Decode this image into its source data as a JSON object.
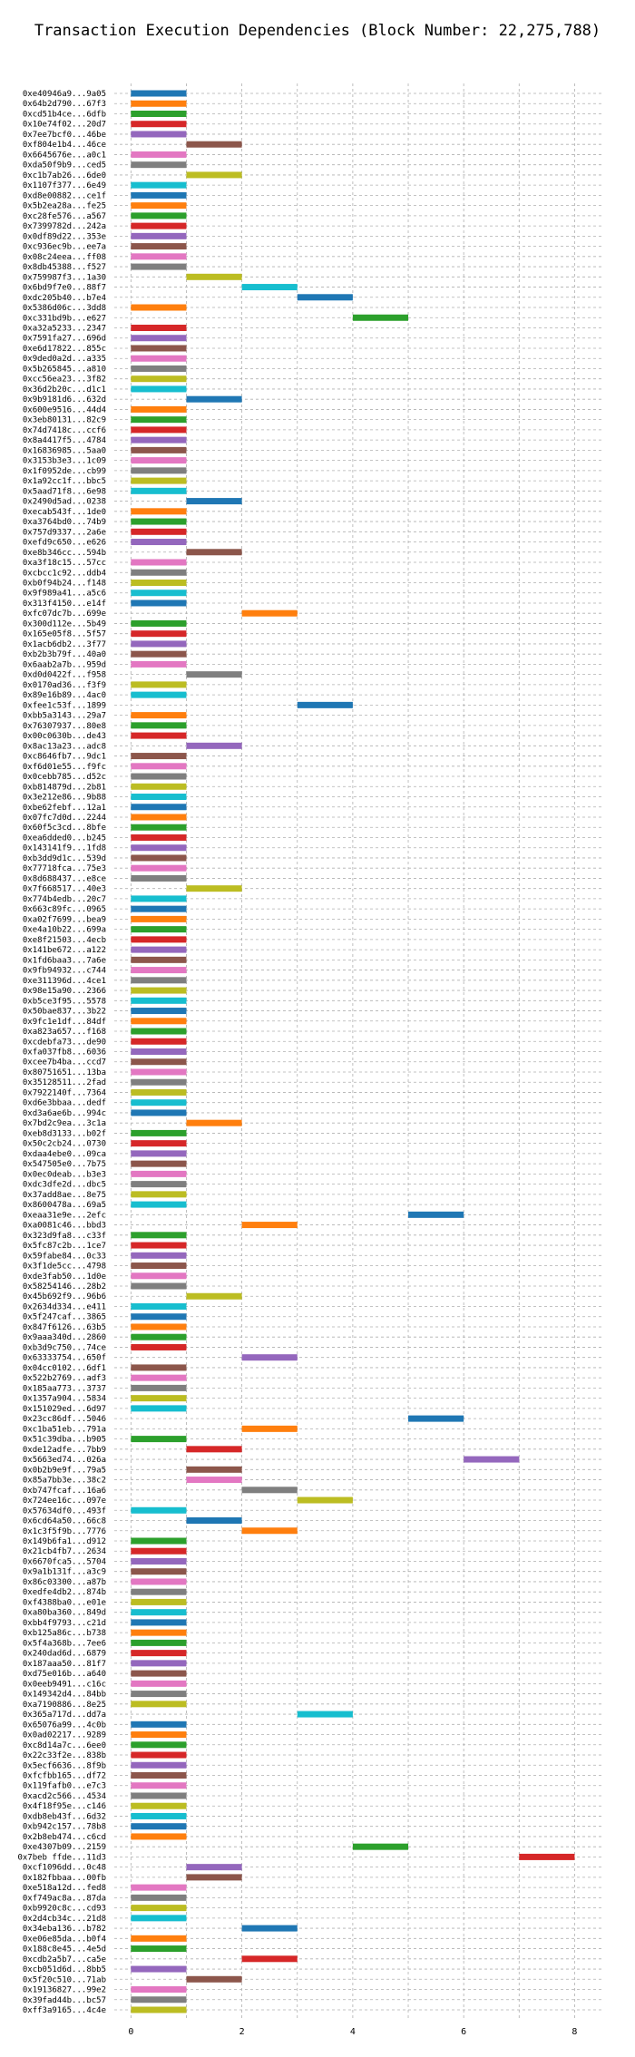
{
  "chart_data": {
    "type": "bar",
    "orientation": "horizontal-gantt",
    "title": "Transaction Execution Dependencies (Block Number: 22,275,788)",
    "xlabel": "",
    "ylabel": "",
    "xlim": [
      -0.3,
      8.5
    ],
    "xticks": [
      0,
      2,
      4,
      6,
      8
    ],
    "grid": true,
    "palette": [
      "#1f77b4",
      "#ff7f0e",
      "#2ca02c",
      "#d62728",
      "#9467bd",
      "#8c564b",
      "#e377c2",
      "#7f7f7f",
      "#bcbd22",
      "#17becf"
    ],
    "series": [
      {
        "label": "0xe40946a9...9a05",
        "start": 0,
        "end": 1
      },
      {
        "label": "0x64b2d790...67f3",
        "start": 0,
        "end": 1
      },
      {
        "label": "0xcd51b4ce...6dfb",
        "start": 0,
        "end": 1
      },
      {
        "label": "0x10e74f02...20d7",
        "start": 0,
        "end": 1
      },
      {
        "label": "0x7ee7bcf0...46be",
        "start": 0,
        "end": 1
      },
      {
        "label": "0xf804e1b4...46ce",
        "start": 1,
        "end": 2
      },
      {
        "label": "0x6645676e...a0c1",
        "start": 0,
        "end": 1
      },
      {
        "label": "0xda50f9b9...ced5",
        "start": 0,
        "end": 1
      },
      {
        "label": "0xc1b7ab26...6de0",
        "start": 1,
        "end": 2
      },
      {
        "label": "0x1107f377...6e49",
        "start": 0,
        "end": 1
      },
      {
        "label": "0xd8e00882...ce1f",
        "start": 0,
        "end": 1
      },
      {
        "label": "0x5b2ea28a...fe25",
        "start": 0,
        "end": 1
      },
      {
        "label": "0xc28fe576...a567",
        "start": 0,
        "end": 1
      },
      {
        "label": "0x7399782d...242a",
        "start": 0,
        "end": 1
      },
      {
        "label": "0x0df89d22...353e",
        "start": 0,
        "end": 1
      },
      {
        "label": "0xc936ec9b...ee7a",
        "start": 0,
        "end": 1
      },
      {
        "label": "0x08c24eea...ff08",
        "start": 0,
        "end": 1
      },
      {
        "label": "0x8db45388...f527",
        "start": 0,
        "end": 1
      },
      {
        "label": "0x759987f3...1a30",
        "start": 1,
        "end": 2
      },
      {
        "label": "0x6bd9f7e0...88f7",
        "start": 2,
        "end": 3
      },
      {
        "label": "0xdc205b40...b7e4",
        "start": 3,
        "end": 4
      },
      {
        "label": "0x5386d06c...3dd8",
        "start": 0,
        "end": 1
      },
      {
        "label": "0xc331bd9b...e627",
        "start": 4,
        "end": 5
      },
      {
        "label": "0xa32a5233...2347",
        "start": 0,
        "end": 1
      },
      {
        "label": "0x7591fa27...696d",
        "start": 0,
        "end": 1
      },
      {
        "label": "0xe6d17822...855c",
        "start": 0,
        "end": 1
      },
      {
        "label": "0x9ded0a2d...a335",
        "start": 0,
        "end": 1
      },
      {
        "label": "0x5b265845...a810",
        "start": 0,
        "end": 1
      },
      {
        "label": "0xcc56ea23...3f82",
        "start": 0,
        "end": 1
      },
      {
        "label": "0x36d2b20c...d1c1",
        "start": 0,
        "end": 1
      },
      {
        "label": "0x9b9181d6...632d",
        "start": 1,
        "end": 2
      },
      {
        "label": "0x600e9516...44d4",
        "start": 0,
        "end": 1
      },
      {
        "label": "0x3eb80131...82c9",
        "start": 0,
        "end": 1
      },
      {
        "label": "0x74d7418c...ccf6",
        "start": 0,
        "end": 1
      },
      {
        "label": "0x8a4417f5...4784",
        "start": 0,
        "end": 1
      },
      {
        "label": "0x16836985...5aa0",
        "start": 0,
        "end": 1
      },
      {
        "label": "0x3153b3e3...1c09",
        "start": 0,
        "end": 1
      },
      {
        "label": "0x1f0952de...cb99",
        "start": 0,
        "end": 1
      },
      {
        "label": "0x1a92cc1f...bbc5",
        "start": 0,
        "end": 1
      },
      {
        "label": "0x5aad71f8...6e98",
        "start": 0,
        "end": 1
      },
      {
        "label": "0x2490d5ad...0238",
        "start": 1,
        "end": 2
      },
      {
        "label": "0xecab543f...1de0",
        "start": 0,
        "end": 1
      },
      {
        "label": "0xa3764bd0...74b9",
        "start": 0,
        "end": 1
      },
      {
        "label": "0x757d9337...2a6e",
        "start": 0,
        "end": 1
      },
      {
        "label": "0xefd9c650...e626",
        "start": 0,
        "end": 1
      },
      {
        "label": "0xe8b346cc...594b",
        "start": 1,
        "end": 2
      },
      {
        "label": "0xa3f18c15...57cc",
        "start": 0,
        "end": 1
      },
      {
        "label": "0xcbcc1c92...ddb4",
        "start": 0,
        "end": 1
      },
      {
        "label": "0xb0f94b24...f148",
        "start": 0,
        "end": 1
      },
      {
        "label": "0x9f989a41...a5c6",
        "start": 0,
        "end": 1
      },
      {
        "label": "0x313f4150...e14f",
        "start": 0,
        "end": 1
      },
      {
        "label": "0xfc07dc7b...699e",
        "start": 2,
        "end": 3
      },
      {
        "label": "0x300d112e...5b49",
        "start": 0,
        "end": 1
      },
      {
        "label": "0x165e05f8...5f57",
        "start": 0,
        "end": 1
      },
      {
        "label": "0x1acb6db2...3f77",
        "start": 0,
        "end": 1
      },
      {
        "label": "0xb2b3b79f...40a0",
        "start": 0,
        "end": 1
      },
      {
        "label": "0x6aab2a7b...959d",
        "start": 0,
        "end": 1
      },
      {
        "label": "0xd0d0422f...f958",
        "start": 1,
        "end": 2
      },
      {
        "label": "0x0170ad36...f3f9",
        "start": 0,
        "end": 1
      },
      {
        "label": "0x89e16b89...4ac0",
        "start": 0,
        "end": 1
      },
      {
        "label": "0xfee1c53f...1899",
        "start": 3,
        "end": 4
      },
      {
        "label": "0xbb5a3143...29a7",
        "start": 0,
        "end": 1
      },
      {
        "label": "0x76307937...80e8",
        "start": 0,
        "end": 1
      },
      {
        "label": "0x00c0630b...de43",
        "start": 0,
        "end": 1
      },
      {
        "label": "0x8ac13a23...adc8",
        "start": 1,
        "end": 2
      },
      {
        "label": "0xc8646fb7...9dc1",
        "start": 0,
        "end": 1
      },
      {
        "label": "0xf6d01e55...f9fc",
        "start": 0,
        "end": 1
      },
      {
        "label": "0x0cebb785...d52c",
        "start": 0,
        "end": 1
      },
      {
        "label": "0xb814879d...2b81",
        "start": 0,
        "end": 1
      },
      {
        "label": "0x3e212e86...9b88",
        "start": 0,
        "end": 1
      },
      {
        "label": "0xbe62febf...12a1",
        "start": 0,
        "end": 1
      },
      {
        "label": "0x07fc7d0d...2244",
        "start": 0,
        "end": 1
      },
      {
        "label": "0x60f5c3cd...8bfe",
        "start": 0,
        "end": 1
      },
      {
        "label": "0xea6dded0...b245",
        "start": 0,
        "end": 1
      },
      {
        "label": "0x143141f9...1fd8",
        "start": 0,
        "end": 1
      },
      {
        "label": "0xb3dd9d1c...539d",
        "start": 0,
        "end": 1
      },
      {
        "label": "0x77718fca...75e3",
        "start": 0,
        "end": 1
      },
      {
        "label": "0x8d688437...e8ce",
        "start": 0,
        "end": 1
      },
      {
        "label": "0x7f668517...40e3",
        "start": 1,
        "end": 2
      },
      {
        "label": "0x774b4edb...20c7",
        "start": 0,
        "end": 1
      },
      {
        "label": "0x663c89fc...0965",
        "start": 0,
        "end": 1
      },
      {
        "label": "0xa02f7699...bea9",
        "start": 0,
        "end": 1
      },
      {
        "label": "0xe4a10b22...699a",
        "start": 0,
        "end": 1
      },
      {
        "label": "0xe8f21503...4ecb",
        "start": 0,
        "end": 1
      },
      {
        "label": "0x141be672...a122",
        "start": 0,
        "end": 1
      },
      {
        "label": "0x1fd6baa3...7a6e",
        "start": 0,
        "end": 1
      },
      {
        "label": "0x9fb94932...c744",
        "start": 0,
        "end": 1
      },
      {
        "label": "0xe311396d...4ce1",
        "start": 0,
        "end": 1
      },
      {
        "label": "0x98e15a90...2366",
        "start": 0,
        "end": 1
      },
      {
        "label": "0xb5ce3f95...5578",
        "start": 0,
        "end": 1
      },
      {
        "label": "0x50bae837...3b22",
        "start": 0,
        "end": 1
      },
      {
        "label": "0x9fc1e1df...84df",
        "start": 0,
        "end": 1
      },
      {
        "label": "0xa823a657...f168",
        "start": 0,
        "end": 1
      },
      {
        "label": "0xcdebfa73...de90",
        "start": 0,
        "end": 1
      },
      {
        "label": "0xfa037fb8...6036",
        "start": 0,
        "end": 1
      },
      {
        "label": "0xcee7b4ba...ccd7",
        "start": 0,
        "end": 1
      },
      {
        "label": "0x80751651...13ba",
        "start": 0,
        "end": 1
      },
      {
        "label": "0x35128511...2fad",
        "start": 0,
        "end": 1
      },
      {
        "label": "0x7922140f...7364",
        "start": 0,
        "end": 1
      },
      {
        "label": "0xd6e3bbaa...dedf",
        "start": 0,
        "end": 1
      },
      {
        "label": "0xd3a6ae6b...994c",
        "start": 0,
        "end": 1
      },
      {
        "label": "0x7bd2c9ea...3c1a",
        "start": 1,
        "end": 2
      },
      {
        "label": "0xeb8d3133...b02f",
        "start": 0,
        "end": 1
      },
      {
        "label": "0x50c2cb24...0730",
        "start": 0,
        "end": 1
      },
      {
        "label": "0xdaa4ebe0...09ca",
        "start": 0,
        "end": 1
      },
      {
        "label": "0x547505e0...7b75",
        "start": 0,
        "end": 1
      },
      {
        "label": "0x0ec0deab...b3e3",
        "start": 0,
        "end": 1
      },
      {
        "label": "0xdc3dfe2d...dbc5",
        "start": 0,
        "end": 1
      },
      {
        "label": "0x37add8ae...8e75",
        "start": 0,
        "end": 1
      },
      {
        "label": "0x8600478a...69a5",
        "start": 0,
        "end": 1
      },
      {
        "label": "0xeaa31e9e...2efc",
        "start": 5,
        "end": 6
      },
      {
        "label": "0xa0081c46...bbd3",
        "start": 2,
        "end": 3
      },
      {
        "label": "0x323d9fa8...c33f",
        "start": 0,
        "end": 1
      },
      {
        "label": "0x5fc87c2b...1ce7",
        "start": 0,
        "end": 1
      },
      {
        "label": "0x59fabe84...0c33",
        "start": 0,
        "end": 1
      },
      {
        "label": "0x3f1de5cc...4798",
        "start": 0,
        "end": 1
      },
      {
        "label": "0xde3fab50...1d0e",
        "start": 0,
        "end": 1
      },
      {
        "label": "0x58254146...28b2",
        "start": 0,
        "end": 1
      },
      {
        "label": "0x45b692f9...96b6",
        "start": 1,
        "end": 2
      },
      {
        "label": "0x2634d334...e411",
        "start": 0,
        "end": 1
      },
      {
        "label": "0x5f247caf...3865",
        "start": 0,
        "end": 1
      },
      {
        "label": "0x847f6126...63b5",
        "start": 0,
        "end": 1
      },
      {
        "label": "0x9aaa340d...2860",
        "start": 0,
        "end": 1
      },
      {
        "label": "0xb3d9c750...74ce",
        "start": 0,
        "end": 1
      },
      {
        "label": "0x63333754...650f",
        "start": 2,
        "end": 3
      },
      {
        "label": "0x04cc0102...6df1",
        "start": 0,
        "end": 1
      },
      {
        "label": "0x522b2769...adf3",
        "start": 0,
        "end": 1
      },
      {
        "label": "0x185aa773...3737",
        "start": 0,
        "end": 1
      },
      {
        "label": "0x1357a904...5834",
        "start": 0,
        "end": 1
      },
      {
        "label": "0x151029ed...6d97",
        "start": 0,
        "end": 1
      },
      {
        "label": "0x23cc86df...5046",
        "start": 5,
        "end": 6
      },
      {
        "label": "0xc1ba51eb...791a",
        "start": 2,
        "end": 3
      },
      {
        "label": "0x51c39dba...b905",
        "start": 0,
        "end": 1
      },
      {
        "label": "0xde12adfe...7bb9",
        "start": 1,
        "end": 2
      },
      {
        "label": "0x5663ed74...026a",
        "start": 6,
        "end": 7
      },
      {
        "label": "0x0b2b9e9f...79a5",
        "start": 1,
        "end": 2
      },
      {
        "label": "0x85a7bb3e...38c2",
        "start": 1,
        "end": 2
      },
      {
        "label": "0xb747fcaf...16a6",
        "start": 2,
        "end": 3
      },
      {
        "label": "0x724ee16c...097e",
        "start": 3,
        "end": 4
      },
      {
        "label": "0x57634df0...493f",
        "start": 0,
        "end": 1
      },
      {
        "label": "0x6cd64a50...66c8",
        "start": 1,
        "end": 2
      },
      {
        "label": "0x1c3f5f9b...7776",
        "start": 2,
        "end": 3
      },
      {
        "label": "0x149b6fa1...d912",
        "start": 0,
        "end": 1
      },
      {
        "label": "0x21cb4fb7...2634",
        "start": 0,
        "end": 1
      },
      {
        "label": "0x6670fca5...5704",
        "start": 0,
        "end": 1
      },
      {
        "label": "0x9a1b131f...a3c9",
        "start": 0,
        "end": 1
      },
      {
        "label": "0x86c03300...a87b",
        "start": 0,
        "end": 1
      },
      {
        "label": "0xedfe4db2...874b",
        "start": 0,
        "end": 1
      },
      {
        "label": "0xf4388ba0...e01e",
        "start": 0,
        "end": 1
      },
      {
        "label": "0xa80ba360...849d",
        "start": 0,
        "end": 1
      },
      {
        "label": "0xbb4f9793...c21d",
        "start": 0,
        "end": 1
      },
      {
        "label": "0xb125a86c...b738",
        "start": 0,
        "end": 1
      },
      {
        "label": "0x5f4a368b...7ee6",
        "start": 0,
        "end": 1
      },
      {
        "label": "0x240dad6d...6879",
        "start": 0,
        "end": 1
      },
      {
        "label": "0x187aaa50...81f7",
        "start": 0,
        "end": 1
      },
      {
        "label": "0xd75e016b...a640",
        "start": 0,
        "end": 1
      },
      {
        "label": "0x0eeb9491...c16c",
        "start": 0,
        "end": 1
      },
      {
        "label": "0x149342d4...84bb",
        "start": 0,
        "end": 1
      },
      {
        "label": "0xa7190886...8e25",
        "start": 0,
        "end": 1
      },
      {
        "label": "0x365a717d...dd7a",
        "start": 3,
        "end": 4
      },
      {
        "label": "0x65076a99...4c0b",
        "start": 0,
        "end": 1
      },
      {
        "label": "0x0ad02217...9289",
        "start": 0,
        "end": 1
      },
      {
        "label": "0xc8d14a7c...6ee0",
        "start": 0,
        "end": 1
      },
      {
        "label": "0x22c33f2e...838b",
        "start": 0,
        "end": 1
      },
      {
        "label": "0x5ecf6636...8f9b",
        "start": 0,
        "end": 1
      },
      {
        "label": "0xfcfbb165...df72",
        "start": 0,
        "end": 1
      },
      {
        "label": "0x119fafb0...e7c3",
        "start": 0,
        "end": 1
      },
      {
        "label": "0xacd2c566...4534",
        "start": 0,
        "end": 1
      },
      {
        "label": "0x4f18f95e...c146",
        "start": 0,
        "end": 1
      },
      {
        "label": "0xdb8eb43f...6d32",
        "start": 0,
        "end": 1
      },
      {
        "label": "0xb942c157...78b8",
        "start": 0,
        "end": 1
      },
      {
        "label": "0x2b8eb474...c6cd",
        "start": 0,
        "end": 1
      },
      {
        "label": "0xe4307b09...2159",
        "start": 4,
        "end": 5
      },
      {
        "label": "0x7beb ffde...11d3",
        "start": 7,
        "end": 8
      },
      {
        "label": "0xcf1096dd...0c48",
        "start": 1,
        "end": 2
      },
      {
        "label": "0x182fbbaa...00fb",
        "start": 1,
        "end": 2
      },
      {
        "label": "0xe518a12d...fed8",
        "start": 0,
        "end": 1
      },
      {
        "label": "0xf749ac8a...87da",
        "start": 0,
        "end": 1
      },
      {
        "label": "0xb9920c8c...cd93",
        "start": 0,
        "end": 1
      },
      {
        "label": "0x2d4cb34c...21d8",
        "start": 0,
        "end": 1
      },
      {
        "label": "0x34eba136...b782",
        "start": 2,
        "end": 3
      },
      {
        "label": "0xe06e85da...b0f4",
        "start": 0,
        "end": 1
      },
      {
        "label": "0x188c8e45...4e5d",
        "start": 0,
        "end": 1
      },
      {
        "label": "0xcdb2a5b7...ca5e",
        "start": 2,
        "end": 3
      },
      {
        "label": "0xcb051d6d...8bb5",
        "start": 0,
        "end": 1
      },
      {
        "label": "0x5f20c510...71ab",
        "start": 1,
        "end": 2
      },
      {
        "label": "0x19136827...99e2",
        "start": 0,
        "end": 1
      },
      {
        "label": "0x39fad44b...bc57",
        "start": 0,
        "end": 1
      },
      {
        "label": "0xff3a9165...4c4e",
        "start": 0,
        "end": 1
      }
    ]
  }
}
